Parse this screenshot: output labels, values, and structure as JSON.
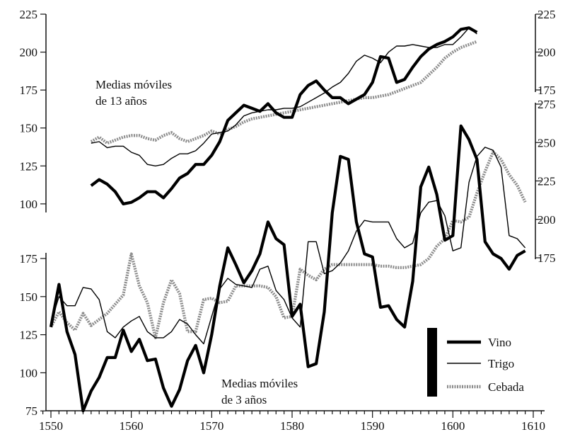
{
  "chart_data": {
    "type": "line",
    "title": "",
    "xlabel": "",
    "ylabel": "",
    "x_axis": {
      "min": 1549,
      "max": 1611,
      "ticks": [
        1550,
        1560,
        1570,
        1580,
        1590,
        1600,
        1610
      ],
      "tick_labels": [
        "1550",
        "1560",
        "1570",
        "1580",
        "1590",
        "1600",
        "1610"
      ]
    },
    "left_axis": {
      "ticks": [
        75,
        100,
        125,
        150,
        175,
        200,
        225
      ],
      "tick_labels_upper": [
        "225",
        "200",
        "175",
        "150",
        "125",
        "100"
      ],
      "tick_labels_lower": [
        "175",
        "150",
        "125",
        "100",
        "75"
      ]
    },
    "right_axis_top": {
      "ticks": [
        175,
        200,
        225
      ],
      "tick_labels": [
        "225",
        "200",
        "175"
      ]
    },
    "right_axis_bottom": {
      "ticks": [
        175,
        200,
        225,
        250,
        275
      ],
      "tick_labels": [
        "275",
        "250",
        "225",
        "200",
        "175"
      ]
    },
    "annotations": {
      "upper": [
        "Medias móviles",
        "de 13 años"
      ],
      "lower": [
        "Medias móviles",
        "de 3 años"
      ]
    },
    "legend": {
      "placement": "bottom-right",
      "entries": [
        {
          "name": "Vino",
          "style": "thick"
        },
        {
          "name": "Trigo",
          "style": "thin"
        },
        {
          "name": "Cebada",
          "style": "gray"
        }
      ]
    },
    "panels": [
      {
        "name": "moving-average-13",
        "x": [
          1555,
          1556,
          1557,
          1558,
          1559,
          1560,
          1561,
          1562,
          1563,
          1564,
          1565,
          1566,
          1567,
          1568,
          1569,
          1570,
          1571,
          1572,
          1573,
          1574,
          1575,
          1576,
          1577,
          1578,
          1579,
          1580,
          1581,
          1582,
          1583,
          1584,
          1585,
          1586,
          1587,
          1588,
          1589,
          1590,
          1591,
          1592,
          1593,
          1594,
          1595,
          1596,
          1597,
          1598,
          1599,
          1600,
          1601,
          1602,
          1603
        ],
        "series": [
          {
            "name": "Vino",
            "values": [
              112,
              116,
              113,
              108,
              100,
              101,
              104,
              108,
              108,
              104,
              110,
              117,
              120,
              126,
              126,
              132,
              141,
              155,
              160,
              165,
              163,
              161,
              166,
              160,
              157,
              157,
              172,
              178,
              181,
              175,
              170,
              170,
              166,
              169,
              172,
              180,
              197,
              196,
              180,
              182,
              190,
              197,
              202,
              205,
              207,
              210,
              215,
              216,
              213
            ]
          },
          {
            "name": "Trigo",
            "values": [
              140,
              141,
              137,
              138,
              138,
              134,
              132,
              126,
              125,
              126,
              130,
              133,
              133,
              135,
              140,
              146,
              147,
              148,
              152,
              158,
              160,
              161,
              162,
              162,
              163,
              163,
              164,
              167,
              170,
              173,
              177,
              180,
              186,
              194,
              198,
              196,
              193,
              200,
              204,
              204,
              205,
              204,
              203,
              203,
              205,
              205,
              210,
              216,
              212
            ]
          },
          {
            "name": "Cebada",
            "values": [
              141,
              144,
              140,
              142,
              144,
              145,
              145,
              143,
              142,
              145,
              147,
              143,
              141,
              143,
              145,
              148,
              146,
              149,
              151,
              154,
              156,
              157,
              158,
              159,
              160,
              161,
              162,
              163,
              164,
              165,
              166,
              167,
              168,
              169,
              170,
              170,
              171,
              172,
              174,
              176,
              178,
              180,
              185,
              190,
              196,
              200,
              203,
              205,
              207
            ]
          }
        ]
      },
      {
        "name": "moving-average-3",
        "x": [
          1550,
          1551,
          1552,
          1553,
          1554,
          1555,
          1556,
          1557,
          1558,
          1559,
          1560,
          1561,
          1562,
          1563,
          1564,
          1565,
          1566,
          1567,
          1568,
          1569,
          1570,
          1571,
          1572,
          1573,
          1574,
          1575,
          1576,
          1577,
          1578,
          1579,
          1580,
          1581,
          1582,
          1583,
          1584,
          1585,
          1586,
          1587,
          1588,
          1589,
          1590,
          1591,
          1592,
          1593,
          1594,
          1595,
          1596,
          1597,
          1598,
          1599,
          1600,
          1601,
          1602,
          1603,
          1604,
          1605,
          1606,
          1607,
          1608,
          1609
        ],
        "series": [
          {
            "name": "Vino",
            "values": [
              130,
              158,
              127,
              112,
              75,
              88,
              97,
              110,
              110,
              128,
              114,
              122,
              108,
              109,
              90,
              78,
              89,
              108,
              118,
              100,
              125,
              157,
              182,
              171,
              159,
              167,
              178,
              199,
              188,
              184,
              137,
              145,
              104,
              106,
              140,
              205,
              242,
              240,
              199,
              178,
              176,
              143,
              144,
              135,
              130,
              160,
              222,
              235,
              217,
              187,
              190,
              262,
              253,
              240,
              186,
              178,
              175,
              168,
              177,
              180
            ]
          },
          {
            "name": "Trigo",
            "values": [
              133,
              150,
              144,
              144,
              156,
              155,
              148,
              127,
              123,
              130,
              134,
              137,
              127,
              123,
              123,
              127,
              135,
              132,
              125,
              119,
              137,
              155,
              162,
              158,
              157,
              156,
              168,
              170,
              154,
              148,
              136,
              130,
              186,
              186,
              165,
              167,
              172,
              180,
              193,
              200,
              199,
              199,
              199,
              188,
              182,
              185,
              205,
              212,
              213,
              203,
              180,
              182,
              225,
              242,
              248,
              246,
              235,
              190,
              188,
              182
            ]
          },
          {
            "name": "Cebada",
            "values": [
              130,
              140,
              133,
              128,
              139,
              131,
              135,
              139,
              145,
              151,
              178,
              157,
              146,
              123,
              146,
              161,
              152,
              127,
              127,
              148,
              149,
              146,
              147,
              157,
              157,
              157,
              157,
              156,
              150,
              136,
              137,
              168,
              164,
              161,
              168,
              171,
              171,
              171,
              171,
              171,
              171,
              170,
              170,
              169,
              169,
              170,
              171,
              175,
              183,
              188,
              200,
              199,
              202,
              218,
              232,
              245,
              240,
              230,
              223,
              212
            ]
          }
        ]
      }
    ]
  }
}
